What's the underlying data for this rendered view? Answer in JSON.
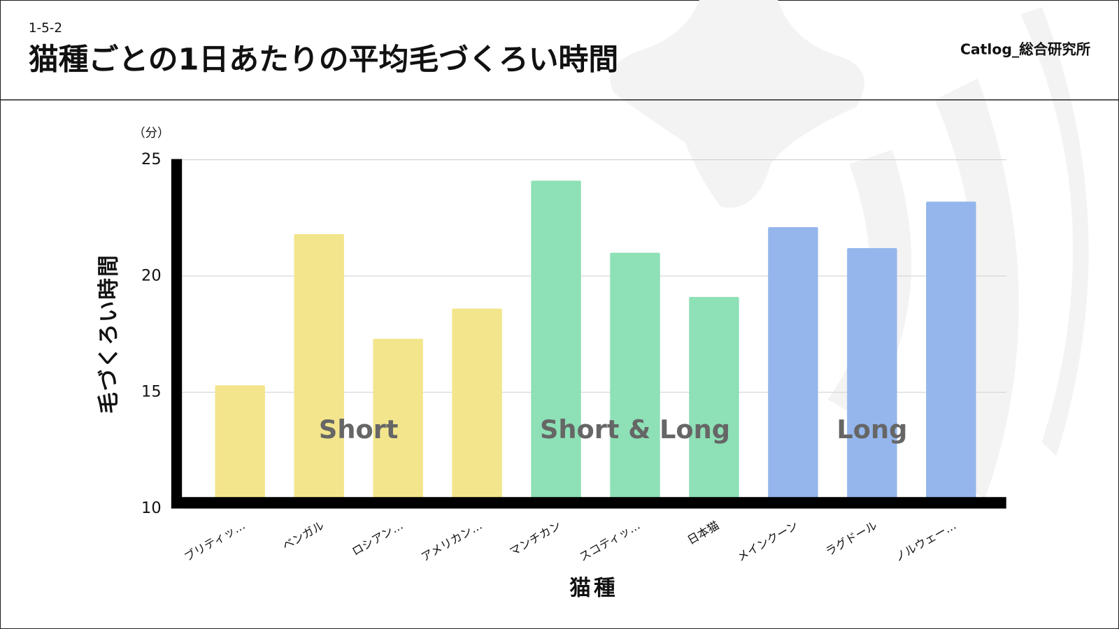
{
  "header": {
    "section": "1-5-2",
    "title": "猫種ごとの1日あたりの平均毛づくろい時間",
    "brand": "Catlog_総合研究所"
  },
  "chart_data": {
    "type": "bar",
    "unit_label": "（分）",
    "y_label": "毛づくろい時間",
    "x_label": "猫種",
    "categories": [
      "ブリティッ…",
      "ベンガル",
      "ロシアン…",
      "アメリカン…",
      "マンチカン",
      "スコティッ…",
      "日本猫",
      "メインクーン",
      "ラグドール",
      "ノルウェー…"
    ],
    "series": [
      {
        "name": "Short",
        "color": "#f3e58c",
        "values": [
          15.3,
          21.8,
          17.3,
          18.6,
          null,
          null,
          null,
          null,
          null,
          null
        ]
      },
      {
        "name": "Short & Long",
        "color": "#8ee0b6",
        "values": [
          null,
          null,
          null,
          null,
          24.1,
          21.0,
          19.1,
          null,
          null,
          null
        ]
      },
      {
        "name": "Long",
        "color": "#94b6ec",
        "values": [
          null,
          null,
          null,
          null,
          null,
          null,
          null,
          22.1,
          21.2,
          23.2
        ]
      }
    ],
    "ylim": [
      10,
      25
    ],
    "yticks": [
      10,
      15,
      20,
      25
    ],
    "grid": true
  }
}
